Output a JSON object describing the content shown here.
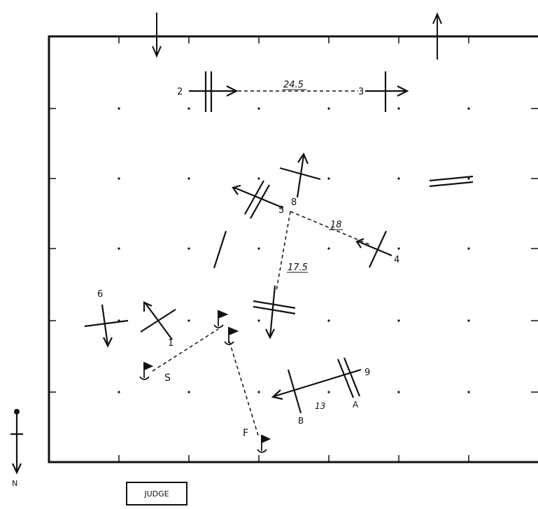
{
  "course": {
    "stations": [
      {
        "id": "s2",
        "label": "2"
      },
      {
        "id": "s3",
        "label": "3"
      },
      {
        "id": "s4",
        "label": "4"
      },
      {
        "id": "s5",
        "label": "5"
      },
      {
        "id": "s6",
        "label": "6"
      },
      {
        "id": "s8",
        "label": "8"
      },
      {
        "id": "s9",
        "label": "9"
      },
      {
        "id": "s1",
        "label": "1"
      },
      {
        "id": "sA",
        "label": "A"
      },
      {
        "id": "sB",
        "label": "B"
      }
    ],
    "start_label": "S",
    "finish_label": "F",
    "distances": {
      "d23": "24.5",
      "d54": "18",
      "d5s": "17.5",
      "dAB": "13"
    }
  },
  "legend": {
    "north_label": "N",
    "judge_label": "JUDGE"
  }
}
